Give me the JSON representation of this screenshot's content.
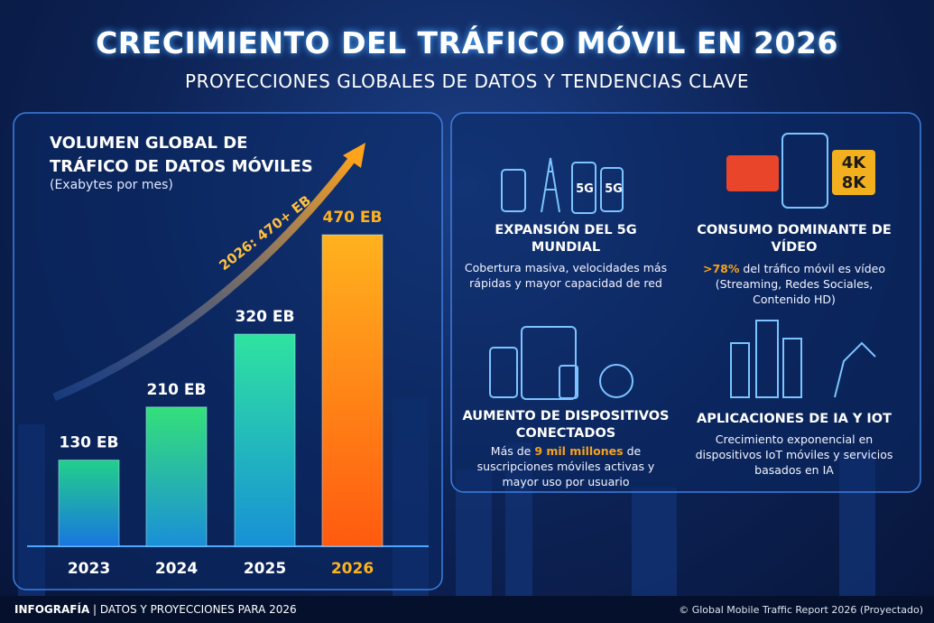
{
  "header": {
    "title": "CRECIMIENTO DEL TRÁFICO MÓVIL EN 2026",
    "subtitle": "PROYECCIONES GLOBALES DE DATOS Y TENDENCIAS CLAVE"
  },
  "chart_data": {
    "type": "bar",
    "title": "VOLUMEN GLOBAL DE TRÁFICO DE DATOS MÓVILES",
    "subtitle": "(Exabytes por mes)",
    "categories": [
      "2023",
      "2024",
      "2025",
      "2026"
    ],
    "values": [
      130,
      210,
      320,
      470
    ],
    "value_labels": [
      "130 EB",
      "210 EB",
      "320 EB",
      "470 EB"
    ],
    "colors": [
      "url(#g0)",
      "url(#g1)",
      "url(#g2)",
      "url(#g3)"
    ],
    "label_colors": [
      "#ffffff",
      "#ffffff",
      "#ffffff",
      "#ffb21e"
    ],
    "annotation": "2026: 470+ EB"
  },
  "cards": [
    {
      "title": "EXPANSIÓN DEL 5G MUNDIAL",
      "body": [
        {
          "text": "Cobertura masiva, velocidades más rápidas y mayor capacidad de red"
        }
      ],
      "icon_texts": [
        "5G",
        "5G"
      ]
    },
    {
      "title": "CONSUMO DOMINANTE DE VÍDEO",
      "body": [
        {
          "text": ">78%",
          "highlight": true
        },
        {
          "text": " del tráfico móvil es vídeo (Streaming, Redes Sociales, Contenido HD)"
        }
      ],
      "icon_texts": [
        "4K",
        "8K"
      ]
    },
    {
      "title": "AUMENTO DE DISPOSITIVOS CONECTADOS",
      "body": [
        {
          "text": "Más de "
        },
        {
          "text": "9 mil millones",
          "highlight": true
        },
        {
          "text": " de suscripciones móviles activas y mayor uso por usuario"
        }
      ]
    },
    {
      "title": "APLICACIONES DE IA Y IOT",
      "body": [
        {
          "text": "Crecimiento exponencial en dispositivos IoT móviles y servicios basados en IA"
        }
      ]
    }
  ],
  "footer": {
    "label": "INFOGRAFÍA",
    "text": "DATOS Y PROYECCIONES PARA 2026",
    "source": "© Global Mobile Traffic Report 2026 (Proyectado)"
  }
}
